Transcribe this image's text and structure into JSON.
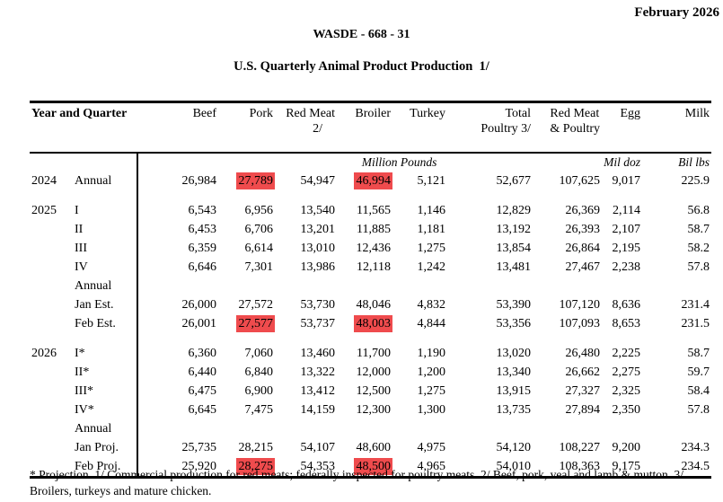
{
  "page": {
    "date_label": "February 2026",
    "report_id": "WASDE - 668 - 31",
    "table_title": "U.S. Quarterly Animal Product Production  1/"
  },
  "colors": {
    "background": "#ffffff",
    "text": "#000000",
    "highlight": "#ef4b4d"
  },
  "table": {
    "row_header": "Year and Quarter",
    "columns": [
      {
        "label": "Beef",
        "sub": ""
      },
      {
        "label": "Pork",
        "sub": ""
      },
      {
        "label": "Red Meat",
        "sub": "2/"
      },
      {
        "label": "Broiler",
        "sub": ""
      },
      {
        "label": "Turkey",
        "sub": ""
      },
      {
        "label": "Total",
        "sub": "Poultry 3/"
      },
      {
        "label": "Red Meat",
        "sub": "& Poultry"
      },
      {
        "label": "Egg",
        "sub": ""
      },
      {
        "label": "Milk",
        "sub": ""
      }
    ],
    "units": {
      "million_pounds": "Million Pounds",
      "egg": "Mil doz",
      "milk": "Bil lbs"
    },
    "rows": [
      {
        "year": "2024",
        "quarter": "Annual",
        "gap_before": false,
        "values": [
          "26,984",
          "27,789",
          "54,947",
          "46,994",
          "5,121",
          "52,677",
          "107,625",
          "9,017",
          "225.9"
        ],
        "highlight": [
          1,
          3
        ]
      },
      {
        "year": "2025",
        "quarter": "I",
        "gap_before": true,
        "values": [
          "6,543",
          "6,956",
          "13,540",
          "11,565",
          "1,146",
          "12,829",
          "26,369",
          "2,114",
          "56.8"
        ]
      },
      {
        "year": "",
        "quarter": "II",
        "values": [
          "6,453",
          "6,706",
          "13,201",
          "11,885",
          "1,181",
          "13,192",
          "26,393",
          "2,107",
          "58.7"
        ]
      },
      {
        "year": "",
        "quarter": "III",
        "values": [
          "6,359",
          "6,614",
          "13,010",
          "12,436",
          "1,275",
          "13,854",
          "26,864",
          "2,195",
          "58.2"
        ]
      },
      {
        "year": "",
        "quarter": "IV",
        "values": [
          "6,646",
          "7,301",
          "13,986",
          "12,118",
          "1,242",
          "13,481",
          "27,467",
          "2,238",
          "57.8"
        ]
      },
      {
        "year": "",
        "quarter": "Annual",
        "values": [
          "",
          "",
          "",
          "",
          "",
          "",
          "",
          "",
          ""
        ]
      },
      {
        "year": "",
        "quarter": "Jan Est.",
        "values": [
          "26,000",
          "27,572",
          "53,730",
          "48,046",
          "4,832",
          "53,390",
          "107,120",
          "8,636",
          "231.4"
        ]
      },
      {
        "year": "",
        "quarter": "Feb Est.",
        "values": [
          "26,001",
          "27,577",
          "53,737",
          "48,003",
          "4,844",
          "53,356",
          "107,093",
          "8,653",
          "231.5"
        ],
        "highlight": [
          1,
          3
        ]
      },
      {
        "year": "2026",
        "quarter": "I*",
        "gap_before": true,
        "values": [
          "6,360",
          "7,060",
          "13,460",
          "11,700",
          "1,190",
          "13,020",
          "26,480",
          "2,225",
          "58.7"
        ]
      },
      {
        "year": "",
        "quarter": "II*",
        "values": [
          "6,440",
          "6,840",
          "13,322",
          "12,000",
          "1,200",
          "13,340",
          "26,662",
          "2,275",
          "59.7"
        ]
      },
      {
        "year": "",
        "quarter": "III*",
        "values": [
          "6,475",
          "6,900",
          "13,412",
          "12,500",
          "1,275",
          "13,915",
          "27,327",
          "2,325",
          "58.4"
        ]
      },
      {
        "year": "",
        "quarter": "IV*",
        "values": [
          "6,645",
          "7,475",
          "14,159",
          "12,300",
          "1,300",
          "13,735",
          "27,894",
          "2,350",
          "57.8"
        ]
      },
      {
        "year": "",
        "quarter": "Annual",
        "values": [
          "",
          "",
          "",
          "",
          "",
          "",
          "",
          "",
          ""
        ]
      },
      {
        "year": "",
        "quarter": "Jan Proj.",
        "values": [
          "25,735",
          "28,215",
          "54,107",
          "48,600",
          "4,975",
          "54,120",
          "108,227",
          "9,200",
          "234.3"
        ]
      },
      {
        "year": "",
        "quarter": "Feb Proj.",
        "values": [
          "25,920",
          "28,275",
          "54,353",
          "48,500",
          "4,965",
          "54,010",
          "108,363",
          "9,175",
          "234.5"
        ],
        "highlight": [
          1,
          3
        ]
      }
    ],
    "footnote": "* Projection. 1/ Commercial production for red meats; federally inspected for poultry meats. 2/ Beef, pork, veal and lamb & mutton. 3/ Broilers, turkeys and mature chicken."
  }
}
